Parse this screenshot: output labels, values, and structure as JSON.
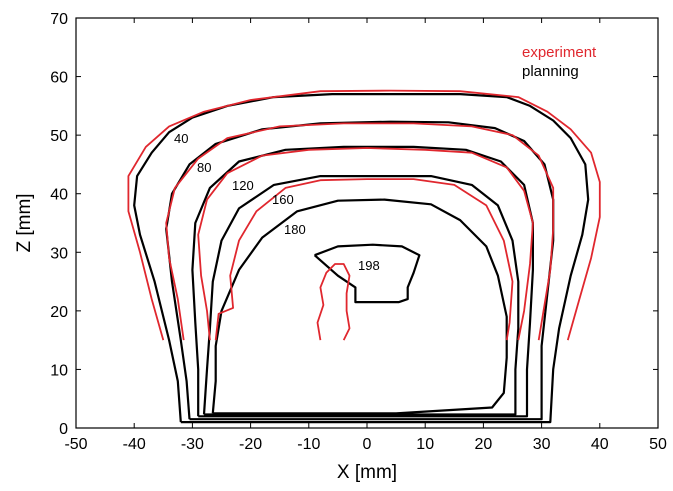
{
  "chart_data": {
    "type": "line",
    "title": "",
    "xlabel": "X [mm]",
    "ylabel": "Z [mm]",
    "xlim": [
      -50,
      50
    ],
    "ylim": [
      0,
      70
    ],
    "xticks": [
      "-50",
      "-40",
      "-30",
      "-20",
      "-10",
      "0",
      "10",
      "20",
      "30",
      "40",
      "50"
    ],
    "yticks": [
      "0",
      "10",
      "20",
      "30",
      "40",
      "50",
      "60",
      "70"
    ],
    "grid": false,
    "legend_position": "top-right",
    "colors": {
      "experiment": "#e0272e",
      "planning": "#000000"
    },
    "series": [
      {
        "name": "planning",
        "contours": [
          {
            "level": "40",
            "points": [
              [
                -32,
                1
              ],
              [
                -32.5,
                8
              ],
              [
                -34,
                15
              ],
              [
                -36.5,
                25
              ],
              [
                -39,
                33
              ],
              [
                -40,
                38
              ],
              [
                -39.5,
                43
              ],
              [
                -37,
                47
              ],
              [
                -34,
                50.5
              ],
              [
                -30,
                53
              ],
              [
                -24,
                55
              ],
              [
                -16,
                56.5
              ],
              [
                -6,
                57
              ],
              [
                6,
                57
              ],
              [
                16,
                57
              ],
              [
                24,
                56.5
              ],
              [
                28,
                55
              ],
              [
                32,
                52.5
              ],
              [
                35,
                49.5
              ],
              [
                37.5,
                45
              ],
              [
                38,
                39
              ],
              [
                37,
                33
              ],
              [
                35,
                26
              ],
              [
                33,
                17
              ],
              [
                32,
                10
              ],
              [
                31.5,
                1
              ],
              [
                0,
                1
              ],
              [
                -32,
                1
              ]
            ]
          },
          {
            "level": "80",
            "points": [
              [
                -30.5,
                1.5
              ],
              [
                -31,
                8
              ],
              [
                -32,
                15
              ],
              [
                -33.5,
                25
              ],
              [
                -34.5,
                34
              ],
              [
                -33.5,
                40
              ],
              [
                -30.5,
                45
              ],
              [
                -26,
                48.5
              ],
              [
                -18,
                51
              ],
              [
                -8,
                52
              ],
              [
                4,
                52.3
              ],
              [
                14,
                52.2
              ],
              [
                22,
                51.2
              ],
              [
                27,
                49
              ],
              [
                30.5,
                45
              ],
              [
                32,
                39
              ],
              [
                32,
                32
              ],
              [
                31,
                23
              ],
              [
                30,
                14
              ],
              [
                30,
                1.5
              ],
              [
                -30.5,
                1.5
              ]
            ]
          },
          {
            "level": "120",
            "points": [
              [
                -29,
                2
              ],
              [
                -29,
                10
              ],
              [
                -29.5,
                18
              ],
              [
                -30,
                27
              ],
              [
                -29.5,
                35
              ],
              [
                -27,
                41
              ],
              [
                -22,
                45.5
              ],
              [
                -14,
                47.5
              ],
              [
                -4,
                48
              ],
              [
                8,
                48
              ],
              [
                17,
                47.5
              ],
              [
                23,
                45.5
              ],
              [
                27,
                41.5
              ],
              [
                28.5,
                35
              ],
              [
                28.5,
                27
              ],
              [
                28,
                18
              ],
              [
                27.5,
                10
              ],
              [
                27.5,
                2
              ],
              [
                -29,
                2
              ]
            ]
          },
          {
            "level": "160",
            "points": [
              [
                -28,
                2.3
              ],
              [
                -27.5,
                10
              ],
              [
                -27,
                17
              ],
              [
                -26.5,
                25
              ],
              [
                -25,
                32
              ],
              [
                -22,
                37.5
              ],
              [
                -16,
                41.5
              ],
              [
                -8,
                43
              ],
              [
                2,
                43
              ],
              [
                11,
                43
              ],
              [
                18,
                41.5
              ],
              [
                22.5,
                38
              ],
              [
                25,
                32
              ],
              [
                26,
                25
              ],
              [
                26,
                17
              ],
              [
                25.5,
                10
              ],
              [
                25.5,
                2.3
              ],
              [
                -28,
                2.3
              ]
            ]
          },
          {
            "level": "180",
            "points": [
              [
                -26.5,
                2.5
              ],
              [
                -26,
                8
              ],
              [
                -26,
                14
              ],
              [
                -25,
                20
              ],
              [
                -22,
                27
              ],
              [
                -18,
                32.5
              ],
              [
                -12,
                37
              ],
              [
                -5,
                38.8
              ],
              [
                3,
                39
              ],
              [
                11,
                38.2
              ],
              [
                16,
                35.5
              ],
              [
                20.5,
                31
              ],
              [
                22.5,
                26
              ],
              [
                24,
                19
              ],
              [
                24,
                12
              ],
              [
                23.5,
                6
              ],
              [
                21.5,
                3.5
              ],
              [
                5,
                2.5
              ],
              [
                -26.5,
                2.5
              ]
            ]
          },
          {
            "level": "198",
            "points": [
              [
                -9,
                29.5
              ],
              [
                -5,
                31
              ],
              [
                1,
                31.3
              ],
              [
                6,
                31
              ],
              [
                9,
                29.5
              ],
              [
                8,
                26.5
              ],
              [
                7,
                24
              ],
              [
                7,
                22
              ],
              [
                5.5,
                21.5
              ],
              [
                -2,
                21.5
              ],
              [
                -2,
                24
              ],
              [
                -5,
                26
              ],
              [
                -9,
                29.5
              ]
            ]
          }
        ]
      },
      {
        "name": "experiment",
        "contours": [
          {
            "level": "40",
            "points": [
              [
                -35,
                15
              ],
              [
                -37,
                22
              ],
              [
                -39,
                30
              ],
              [
                -41,
                37
              ],
              [
                -41,
                43
              ],
              [
                -38,
                48
              ],
              [
                -34,
                51.5
              ],
              [
                -28,
                54
              ],
              [
                -20,
                56
              ],
              [
                -8,
                57.5
              ],
              [
                4,
                57.6
              ],
              [
                16,
                57.5
              ],
              [
                26,
                56.5
              ],
              [
                31,
                54
              ],
              [
                35,
                51
              ],
              [
                38.5,
                47
              ],
              [
                40,
                42
              ],
              [
                40,
                36
              ],
              [
                38.5,
                29
              ],
              [
                36.5,
                22
              ],
              [
                34.5,
                15
              ]
            ]
          },
          {
            "level": "80",
            "points": [
              [
                -31.5,
                15
              ],
              [
                -32.5,
                22
              ],
              [
                -34,
                29
              ],
              [
                -34.5,
                35
              ],
              [
                -33,
                41
              ],
              [
                -29,
                46
              ],
              [
                -24,
                49.5
              ],
              [
                -15,
                51.5
              ],
              [
                -4,
                52
              ],
              [
                8,
                52
              ],
              [
                18,
                51.5
              ],
              [
                25,
                50
              ],
              [
                29.5,
                46.5
              ],
              [
                32,
                41
              ],
              [
                32,
                34
              ],
              [
                31.5,
                27
              ],
              [
                30.5,
                21
              ],
              [
                29.5,
                15
              ]
            ]
          },
          {
            "level": "120",
            "points": [
              [
                -27,
                15
              ],
              [
                -27.5,
                20
              ],
              [
                -28.5,
                26
              ],
              [
                -29,
                33
              ],
              [
                -27.5,
                39
              ],
              [
                -24,
                43.5
              ],
              [
                -18,
                46.5
              ],
              [
                -10,
                47.5
              ],
              [
                0,
                47.8
              ],
              [
                10,
                47.5
              ],
              [
                18,
                47
              ],
              [
                24,
                44.5
              ],
              [
                27,
                40.5
              ],
              [
                28.5,
                35
              ],
              [
                28,
                28
              ],
              [
                27,
                20
              ],
              [
                26,
                15
              ]
            ]
          },
          {
            "level": "160",
            "points": [
              [
                -26,
                15
              ],
              [
                -25.5,
                19.5
              ],
              [
                -23,
                20.5
              ],
              [
                -23.5,
                26
              ],
              [
                -22,
                32
              ],
              [
                -19,
                37
              ],
              [
                -14,
                41
              ],
              [
                -8,
                42.3
              ],
              [
                0,
                42.5
              ],
              [
                8,
                42.5
              ],
              [
                15,
                41.5
              ],
              [
                20.5,
                38
              ],
              [
                23.5,
                32
              ],
              [
                25,
                25
              ],
              [
                24.5,
                18
              ],
              [
                24,
                15
              ]
            ]
          },
          {
            "level": "198",
            "points": [
              [
                -8,
                15
              ],
              [
                -8.5,
                18
              ],
              [
                -7.5,
                21
              ],
              [
                -8,
                24
              ],
              [
                -7,
                26.5
              ],
              [
                -5.5,
                28
              ],
              [
                -4,
                28
              ],
              [
                -3,
                26
              ],
              [
                -3.5,
                23
              ],
              [
                -3.5,
                20
              ],
              [
                -3,
                17
              ],
              [
                -4,
                15
              ]
            ]
          }
        ]
      }
    ]
  },
  "labels": {
    "level_40": "40",
    "level_80": "80",
    "level_120": "120",
    "level_160": "160",
    "level_180": "180",
    "level_198": "198",
    "legend_experiment": "experiment",
    "legend_planning": "planning"
  }
}
